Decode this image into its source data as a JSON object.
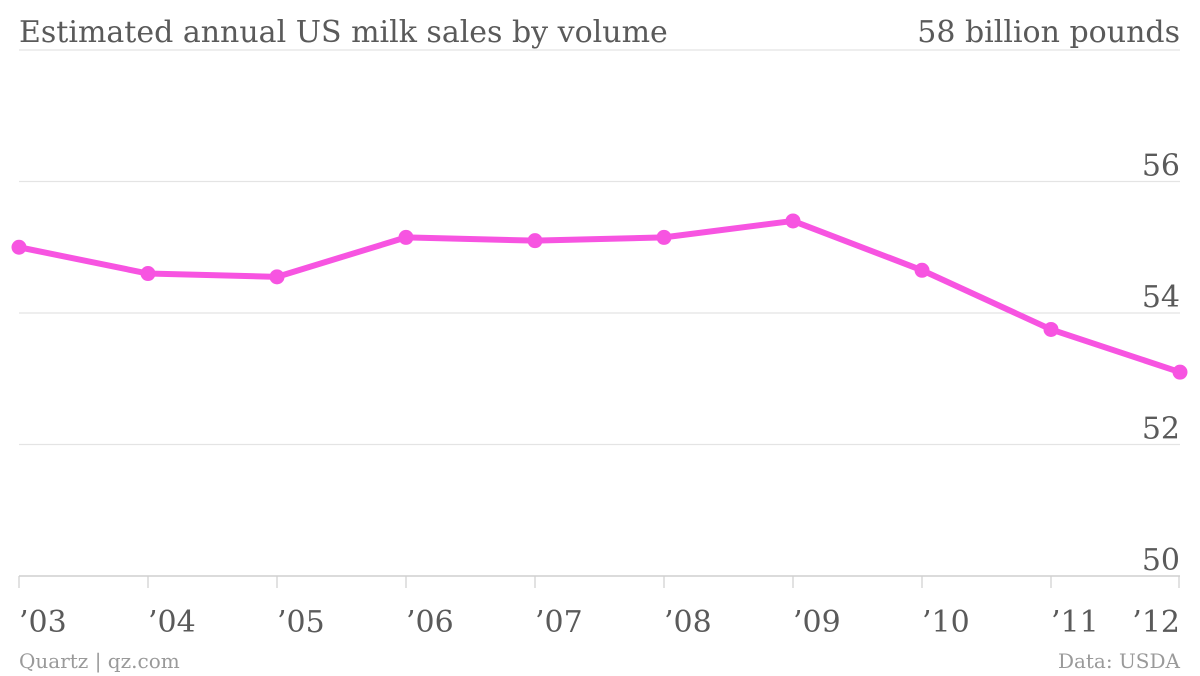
{
  "chart_data": {
    "type": "line",
    "title": "Estimated annual US milk sales by volume",
    "top_label": "58 billion pounds",
    "categories": [
      "’03",
      "’04",
      "’05",
      "’06",
      "’07",
      "’08",
      "’09",
      "’10",
      "’11",
      "’12"
    ],
    "series": [
      {
        "values": [
          55.0,
          54.6,
          54.55,
          55.15,
          55.1,
          55.15,
          55.4,
          54.65,
          53.75,
          53.1
        ],
        "color": "#f754e1"
      }
    ],
    "ylim": [
      50,
      58
    ],
    "y_ticks": [
      50,
      52,
      54,
      56
    ],
    "grid": true,
    "y_axis_side": "right"
  },
  "footer": {
    "source_left": "Quartz | qz.com",
    "source_right": "Data: USDA"
  },
  "colors": {
    "line": "#f754e1",
    "grid": "#e4e4e4",
    "text": "#5a5a5a",
    "footer": "#9a9a9a"
  }
}
